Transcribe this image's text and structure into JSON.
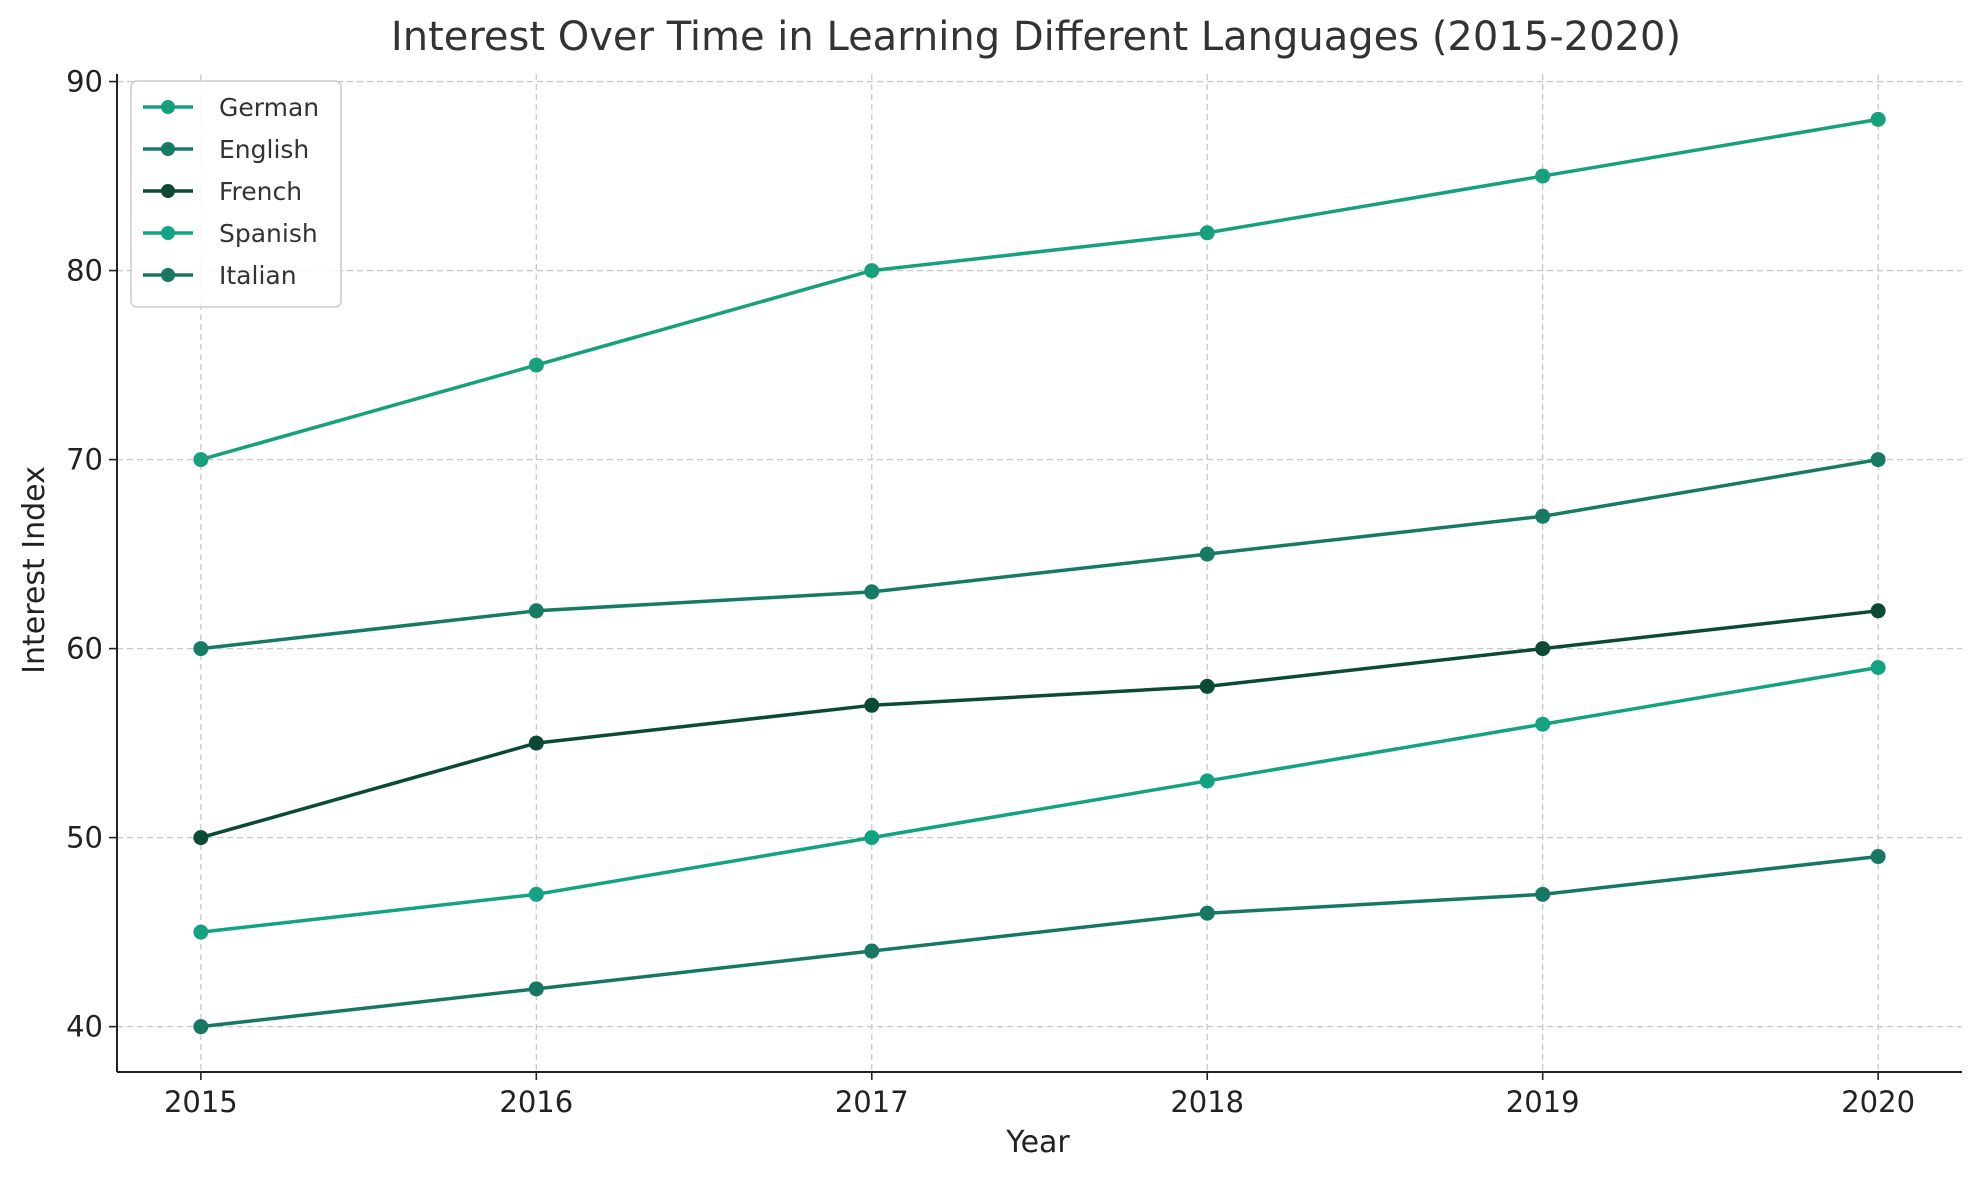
{
  "chart_data": {
    "type": "line",
    "title": "Interest Over Time in Learning Different Languages (2015-2020)",
    "xlabel": "Year",
    "ylabel": "Interest Index",
    "x": [
      2015,
      2016,
      2017,
      2018,
      2019,
      2020
    ],
    "x_tick_labels": [
      "2015",
      "2016",
      "2017",
      "2018",
      "2019",
      "2020"
    ],
    "xlim": [
      2014.75,
      2020.25
    ],
    "ylim": [
      37.6,
      90.4
    ],
    "y_ticks": [
      40,
      50,
      60,
      70,
      80,
      90
    ],
    "y_tick_labels": [
      "40",
      "50",
      "60",
      "70",
      "80",
      "90"
    ],
    "grid": true,
    "grid_style": "dashed",
    "legend_position": "top-left",
    "markers": "circle",
    "series": [
      {
        "name": "German",
        "color": "#16a07c",
        "values": [
          70,
          75,
          80,
          82,
          85,
          88
        ]
      },
      {
        "name": "English",
        "color": "#177a62",
        "values": [
          60,
          62,
          63,
          65,
          67,
          70
        ]
      },
      {
        "name": "French",
        "color": "#0b4a36",
        "values": [
          50,
          55,
          57,
          58,
          60,
          62
        ]
      },
      {
        "name": "Spanish",
        "color": "#13a382",
        "values": [
          45,
          47,
          50,
          53,
          56,
          59
        ]
      },
      {
        "name": "Italian",
        "color": "#167862",
        "values": [
          40,
          42,
          44,
          46,
          47,
          49
        ]
      }
    ]
  }
}
